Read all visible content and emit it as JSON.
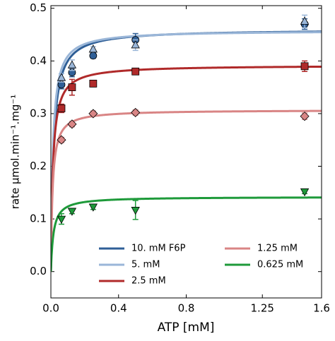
{
  "chart_data": {
    "type": "scatter",
    "xlabel": "ATP [mM]",
    "ylabel": "rate µmol.min⁻¹.mg⁻¹",
    "x": [
      0.0625,
      0.125,
      0.25,
      0.5,
      1.5
    ],
    "xlim": [
      0,
      1.6
    ],
    "xticks": [
      {
        "value": 0,
        "label": "0.0"
      },
      0.4,
      0.8,
      1.25,
      1.6
    ],
    "ylim": [
      -0.05,
      0.505
    ],
    "yticks": [
      {
        "value": 0,
        "label": "0.0"
      },
      0.1,
      0.2,
      0.3,
      0.4,
      0.5
    ],
    "series": [
      {
        "name": "10. mM F6P",
        "color": "#2f5f97",
        "marker": "circle",
        "values": [
          0.355,
          0.378,
          0.41,
          0.44,
          0.47
        ],
        "errors": [
          0.008,
          0.008,
          0.005,
          0.012,
          0.01
        ],
        "fit": {
          "vmax": 0.46,
          "km": 0.015
        }
      },
      {
        "name": "5. mM",
        "color": "#9ab6d8",
        "marker": "triangle-up",
        "values": [
          0.368,
          0.392,
          0.422,
          0.43,
          0.475
        ],
        "errors": [
          0.008,
          0.01,
          0.005,
          0.01,
          0.012
        ],
        "fit": {
          "vmax": 0.458,
          "km": 0.012
        }
      },
      {
        "name": "2.5 mM",
        "color": "#b02a2a",
        "marker": "square",
        "values": [
          0.31,
          0.35,
          0.357,
          0.38,
          0.39
        ],
        "errors": [
          0.008,
          0.015,
          0.006,
          0.006,
          0.01
        ],
        "fit": {
          "vmax": 0.392,
          "km": 0.012
        }
      },
      {
        "name": "1.25 mM",
        "color": "#d98585",
        "marker": "diamond",
        "values": [
          0.25,
          0.28,
          0.3,
          0.302,
          0.295
        ],
        "errors": [
          0.005,
          0.005,
          0.005,
          0.005,
          0.006
        ],
        "fit": {
          "vmax": 0.307,
          "km": 0.01
        }
      },
      {
        "name": "0.625 mM",
        "color": "#1e9a3a",
        "marker": "triangle-down",
        "values": [
          0.1,
          0.115,
          0.123,
          0.117,
          0.152
        ],
        "errors": [
          0.01,
          0.005,
          0.005,
          0.018,
          0.004
        ],
        "fit": {
          "vmax": 0.142,
          "km": 0.015
        }
      }
    ]
  }
}
